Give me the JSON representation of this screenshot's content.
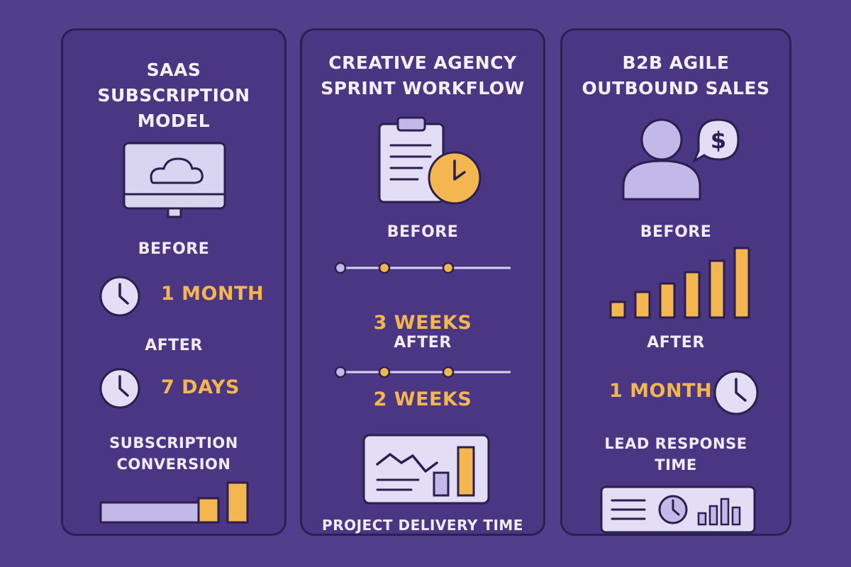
{
  "panels": [
    {
      "title_lines": [
        "SAAS",
        "SUBSCRIPTION",
        "MODEL"
      ],
      "icon": "cloud-monitor-icon",
      "before_label": "BEFORE",
      "before_value": "1 MONTH",
      "after_label": "AFTER",
      "after_value": "7 DAYS",
      "caption_lines": [
        "SUBSCRIPTION",
        "CONVERSION"
      ]
    },
    {
      "title_lines": [
        "CREATIVE AGENCY",
        "SPRINT WORKFLOW"
      ],
      "icon": "clipboard-clock-icon",
      "before_label": "BEFORE",
      "before_value": "3 WEEKS",
      "after_label": "AFTER",
      "after_value": "2 WEEKS",
      "caption_lines": [
        "PROJECT DELIVERY TIME"
      ]
    },
    {
      "title_lines": [
        "B2B AGILE",
        "OUTBOUND SALES"
      ],
      "icon": "salesperson-dollar-icon",
      "before_label": "BEFORE",
      "after_label": "AFTER",
      "after_value": "1 MONTH",
      "caption_lines": [
        "LEAD RESPONSE",
        "TIME"
      ]
    }
  ],
  "colors": {
    "background": "#523f8b",
    "panel": "#4a3683",
    "outline": "#2a1f4f",
    "accent": "#f3b651",
    "light": "#d9d4f0"
  }
}
